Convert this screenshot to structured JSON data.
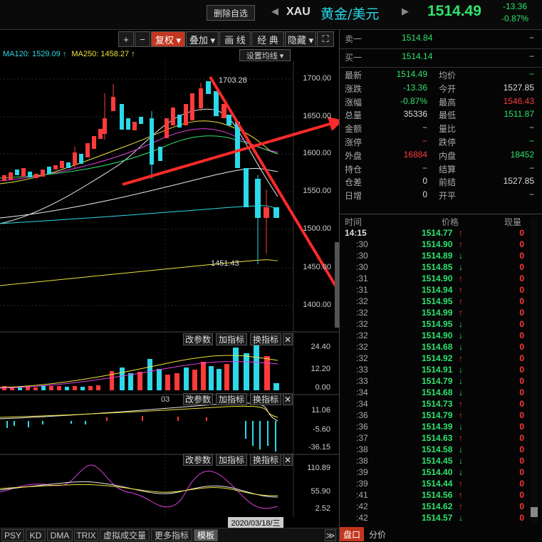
{
  "header": {
    "delete_label": "删除自选",
    "nav_prev": "◀",
    "nav_next": "▶",
    "symbol": "XAU",
    "name": "黄金/美元",
    "price": "1514.49",
    "change": "-13.36",
    "change_pct": "-0.87%"
  },
  "toolbar": {
    "plus": "+",
    "minus": "−",
    "fuquan": "复权 ▾",
    "diejia": "叠加 ▾",
    "draw": "画 线",
    "classic": "经 典",
    "hide": "隐藏 ▾",
    "expand": "⛶"
  },
  "ma": {
    "ma120": "MA120: 1529.09 ↑",
    "ma250": "MA250: 1458.27 ↑",
    "settings": "设置均线 ▾"
  },
  "price_axis": [
    "1700.00",
    "1650.00",
    "1600.00",
    "1550.00",
    "1500.00",
    "1450.00",
    "1400.00"
  ],
  "annotations": {
    "high": "1703.28",
    "low": "1451.43"
  },
  "vol_axis": [
    "24.40",
    "12.20",
    "0.00"
  ],
  "macd_axis": [
    "11.06",
    "-5.60",
    "-36.15"
  ],
  "kdj_axis": [
    "110.89",
    "55.90",
    "2.52"
  ],
  "panel_buttons": {
    "params": "改参数",
    "add": "加指标",
    "switch": "换指标",
    "close": "✕"
  },
  "date_axis": {
    "tick": "03",
    "current": "2020/03/18/三"
  },
  "bottom_tabs": [
    "PSY",
    "KD",
    "DMA",
    "TRIX",
    "虚拟成交量",
    "更多指标",
    "模板"
  ],
  "bottom_scroll": "≫",
  "quote": {
    "sell1": {
      "label": "卖一",
      "price": "1514.84",
      "vol": "−"
    },
    "buy1": {
      "label": "买一",
      "price": "1514.14",
      "vol": "−"
    },
    "rows": [
      {
        "l1": "最新",
        "v1": "1514.49",
        "c1": "grn",
        "l2": "均价",
        "v2": "−",
        "c2": "grn"
      },
      {
        "l1": "涨跌",
        "v1": "-13.36",
        "c1": "grn",
        "l2": "今开",
        "v2": "1527.85",
        "c2": "wht"
      },
      {
        "l1": "涨幅",
        "v1": "-0.87%",
        "c1": "grn",
        "l2": "最高",
        "v2": "1546.43",
        "c2": "red"
      },
      {
        "l1": "总量",
        "v1": "35336",
        "c1": "wht",
        "l2": "最低",
        "v2": "1511.87",
        "c2": "grn"
      },
      {
        "l1": "金额",
        "v1": "−",
        "c1": "gry",
        "l2": "量比",
        "v2": "−",
        "c2": "gry"
      },
      {
        "l1": "涨停",
        "v1": "−",
        "c1": "red",
        "l2": "跌停",
        "v2": "−",
        "c2": "grn"
      },
      {
        "l1": "外盘",
        "v1": "16884",
        "c1": "red",
        "l2": "内盘",
        "v2": "18452",
        "c2": "grn"
      },
      {
        "l1": "持仓",
        "v1": "−",
        "c1": "gry",
        "l2": "结算",
        "v2": "−",
        "c2": "gry"
      },
      {
        "l1": "仓差",
        "v1": "0",
        "c1": "wht",
        "l2": "前结",
        "v2": "1527.85",
        "c2": "wht"
      },
      {
        "l1": "日增",
        "v1": "0",
        "c1": "wht",
        "l2": "开平",
        "v2": "−",
        "c2": "gry"
      }
    ]
  },
  "ticks_header": {
    "time": "时间",
    "price": "价格",
    "vol": "现量"
  },
  "ticks": [
    {
      "t": "14:15",
      "p": "1514.77",
      "d": "up",
      "v": "0"
    },
    {
      "t": ":30",
      "p": "1514.90",
      "d": "up",
      "v": "0"
    },
    {
      "t": ":30",
      "p": "1514.89",
      "d": "down",
      "v": "0"
    },
    {
      "t": ":30",
      "p": "1514.85",
      "d": "down",
      "v": "0"
    },
    {
      "t": ":31",
      "p": "1514.90",
      "d": "up",
      "v": "0"
    },
    {
      "t": ":31",
      "p": "1514.94",
      "d": "up",
      "v": "0"
    },
    {
      "t": ":32",
      "p": "1514.95",
      "d": "up",
      "v": "0"
    },
    {
      "t": ":32",
      "p": "1514.99",
      "d": "up",
      "v": "0"
    },
    {
      "t": ":32",
      "p": "1514.95",
      "d": "down",
      "v": "0"
    },
    {
      "t": ":32",
      "p": "1514.90",
      "d": "down",
      "v": "0"
    },
    {
      "t": ":32",
      "p": "1514.68",
      "d": "down",
      "v": "0"
    },
    {
      "t": ":32",
      "p": "1514.92",
      "d": "up",
      "v": "0"
    },
    {
      "t": ":33",
      "p": "1514.91",
      "d": "down",
      "v": "0"
    },
    {
      "t": ":33",
      "p": "1514.79",
      "d": "down",
      "v": "0"
    },
    {
      "t": ":34",
      "p": "1514.68",
      "d": "down",
      "v": "0"
    },
    {
      "t": ":34",
      "p": "1514.73",
      "d": "up",
      "v": "0"
    },
    {
      "t": ":36",
      "p": "1514.79",
      "d": "up",
      "v": "0"
    },
    {
      "t": ":36",
      "p": "1514.39",
      "d": "down",
      "v": "0"
    },
    {
      "t": ":37",
      "p": "1514.63",
      "d": "up",
      "v": "0"
    },
    {
      "t": ":38",
      "p": "1514.58",
      "d": "down",
      "v": "0"
    },
    {
      "t": ":38",
      "p": "1514.45",
      "d": "down",
      "v": "0"
    },
    {
      "t": ":39",
      "p": "1514.40",
      "d": "down",
      "v": "0"
    },
    {
      "t": ":39",
      "p": "1514.44",
      "d": "up",
      "v": "0"
    },
    {
      "t": ":41",
      "p": "1514.56",
      "d": "up",
      "v": "0"
    },
    {
      "t": ":42",
      "p": "1514.62",
      "d": "up",
      "v": "0"
    },
    {
      "t": ":42",
      "p": "1514.57",
      "d": "down",
      "v": "0"
    }
  ],
  "right_tabs": {
    "pankou": "盘口",
    "fenjia": "分价"
  },
  "colors": {
    "up": "#ff3a3a",
    "down": "#2cd9e8",
    "green": "#2ee36d",
    "accent": "#c3361f"
  }
}
